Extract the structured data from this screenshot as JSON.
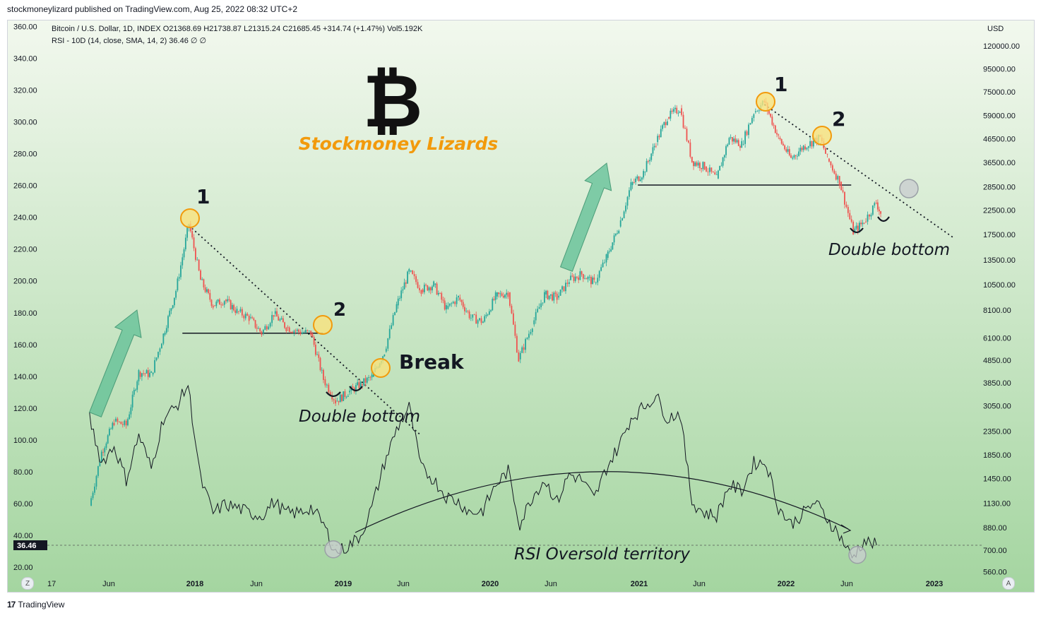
{
  "publisher_line": "stockmoneylizard published on TradingView.com, Aug 25, 2022 08:32 UTC+2",
  "footer_brand": "TradingView",
  "legend": {
    "symbol_line": "Bitcoin / U.S. Dollar, 1D, INDEX  O21368.69  H21738.87  L21315.24  C21685.45  +314.74 (+1.47%)  Vol5.192K",
    "rsi_line": "RSI - 10D (14, close, SMA, 14, 2)  36.46  ∅  ∅"
  },
  "buttons": {
    "zoom_label": "Z",
    "auto_label": "A"
  },
  "colors": {
    "background_top": "#f2f8ee",
    "background_bottom": "#a4d5a0",
    "candle_up": "#26a69a",
    "candle_down": "#ef5350",
    "marker_fill": "#f9e27d",
    "marker_stroke": "#f29a0c",
    "arrow_fill": "#5fbf95",
    "brand_text": "#f29a0c"
  },
  "chart_data": {
    "type": "candlestick",
    "title": "Bitcoin / U.S. Dollar, 1D, INDEX",
    "brand_symbol": "₿",
    "brand_text": "Stockmoney Lizards",
    "x_ticks": [
      "17",
      "Jun",
      "2018",
      "Jun",
      "2019",
      "Jun",
      "2020",
      "Jun",
      "2021",
      "Jun",
      "2022",
      "Jun",
      "2023"
    ],
    "price_axis": {
      "unit": "USD",
      "scale": "log",
      "ticks": [
        120000,
        95000,
        75000,
        59000,
        46500,
        36500,
        28500,
        22500,
        17500,
        13500,
        10500,
        8100,
        6100,
        4850,
        3850,
        3050,
        2350,
        1850,
        1450,
        1130,
        880,
        700,
        560
      ],
      "tick_labels": [
        "120000.00",
        "95000.00",
        "75000.00",
        "59000.00",
        "46500.00",
        "36500.00",
        "28500.00",
        "22500.00",
        "17500.00",
        "13500.00",
        "10500.00",
        "8100.00",
        "6100.00",
        "4850.00",
        "3850.00",
        "3050.00",
        "2350.00",
        "1850.00",
        "1450.00",
        "1130.00",
        "880.00",
        "700.00",
        "560.00"
      ]
    },
    "rsi_axis": {
      "ticks": [
        360,
        340,
        320,
        300,
        280,
        260,
        240,
        220,
        200,
        180,
        160,
        140,
        120,
        100,
        80,
        60,
        40,
        20
      ],
      "tick_labels": [
        "360.00",
        "340.00",
        "320.00",
        "300.00",
        "280.00",
        "260.00",
        "240.00",
        "220.00",
        "200.00",
        "180.00",
        "160.00",
        "140.00",
        "120.00",
        "100.00",
        "80.00",
        "60.00",
        "40.00",
        "20.00"
      ],
      "current_value_label": "36.46",
      "current_value": 36.46
    },
    "price_path": [
      [
        "2017-04",
        1100
      ],
      [
        "2017-05",
        1900
      ],
      [
        "2017-06",
        2600
      ],
      [
        "2017-07",
        2500
      ],
      [
        "2017-08",
        4300
      ],
      [
        "2017-09",
        4200
      ],
      [
        "2017-10",
        6300
      ],
      [
        "2017-11",
        9900
      ],
      [
        "2017-12-17",
        19600
      ],
      [
        "2018-01",
        11000
      ],
      [
        "2018-02",
        8500
      ],
      [
        "2018-03",
        9000
      ],
      [
        "2018-04",
        8000
      ],
      [
        "2018-05",
        7500
      ],
      [
        "2018-06",
        6400
      ],
      [
        "2018-07",
        7800
      ],
      [
        "2018-08",
        6800
      ],
      [
        "2018-09",
        6500
      ],
      [
        "2018-10",
        6400
      ],
      [
        "2018-11",
        4000
      ],
      [
        "2018-12-15",
        3200
      ],
      [
        "2019-01",
        3500
      ],
      [
        "2019-02",
        3800
      ],
      [
        "2019-03",
        4100
      ],
      [
        "2019-04",
        5300
      ],
      [
        "2019-05",
        8500
      ],
      [
        "2019-06",
        12000
      ],
      [
        "2019-07",
        10000
      ],
      [
        "2019-08",
        10500
      ],
      [
        "2019-09",
        8200
      ],
      [
        "2019-10",
        9200
      ],
      [
        "2019-11",
        7500
      ],
      [
        "2019-12",
        7200
      ],
      [
        "2020-01",
        9300
      ],
      [
        "2020-02",
        9700
      ],
      [
        "2020-03-12",
        4900
      ],
      [
        "2020-04",
        7000
      ],
      [
        "2020-05",
        9500
      ],
      [
        "2020-06",
        9200
      ],
      [
        "2020-07",
        11000
      ],
      [
        "2020-08",
        11700
      ],
      [
        "2020-09",
        10700
      ],
      [
        "2020-10",
        13800
      ],
      [
        "2020-11",
        19000
      ],
      [
        "2020-12",
        29000
      ],
      [
        "2021-01",
        33000
      ],
      [
        "2021-02",
        45000
      ],
      [
        "2021-03",
        58000
      ],
      [
        "2021-04",
        63500
      ],
      [
        "2021-05",
        37000
      ],
      [
        "2021-06",
        35000
      ],
      [
        "2021-07",
        31000
      ],
      [
        "2021-08",
        47000
      ],
      [
        "2021-09",
        44000
      ],
      [
        "2021-10",
        61000
      ],
      [
        "2021-11-10",
        68000
      ],
      [
        "2021-12",
        47000
      ],
      [
        "2022-01",
        38000
      ],
      [
        "2022-02",
        43000
      ],
      [
        "2022-03-28",
        47000
      ],
      [
        "2022-04",
        38000
      ],
      [
        "2022-05",
        30000
      ],
      [
        "2022-06-18",
        18000
      ],
      [
        "2022-07",
        20000
      ],
      [
        "2022-08-14",
        24300
      ],
      [
        "2022-08-25",
        21685.45
      ]
    ],
    "rsi_path": [
      [
        "2017-04",
        82
      ],
      [
        "2017-05",
        66
      ],
      [
        "2017-06",
        72
      ],
      [
        "2017-07",
        60
      ],
      [
        "2017-08",
        76
      ],
      [
        "2017-09",
        64
      ],
      [
        "2017-10",
        82
      ],
      [
        "2017-11",
        86
      ],
      [
        "2017-12",
        94
      ],
      [
        "2018-01",
        60
      ],
      [
        "2018-02",
        48
      ],
      [
        "2018-03",
        51
      ],
      [
        "2018-04",
        50
      ],
      [
        "2018-05",
        48
      ],
      [
        "2018-06",
        47
      ],
      [
        "2018-07",
        52
      ],
      [
        "2018-08",
        48
      ],
      [
        "2018-09",
        48
      ],
      [
        "2018-10",
        50
      ],
      [
        "2018-11",
        44
      ],
      [
        "2018-12",
        34
      ],
      [
        "2019-01",
        36
      ],
      [
        "2019-02",
        40
      ],
      [
        "2019-03",
        50
      ],
      [
        "2019-04",
        66
      ],
      [
        "2019-05",
        78
      ],
      [
        "2019-06",
        86
      ],
      [
        "2019-07",
        64
      ],
      [
        "2019-08",
        60
      ],
      [
        "2019-09",
        54
      ],
      [
        "2019-10",
        52
      ],
      [
        "2019-11",
        48
      ],
      [
        "2019-12",
        49
      ],
      [
        "2020-01",
        58
      ],
      [
        "2020-02",
        63
      ],
      [
        "2020-03",
        44
      ],
      [
        "2020-04",
        54
      ],
      [
        "2020-05",
        60
      ],
      [
        "2020-06",
        52
      ],
      [
        "2020-07",
        62
      ],
      [
        "2020-08",
        60
      ],
      [
        "2020-09",
        53
      ],
      [
        "2020-10",
        64
      ],
      [
        "2020-11",
        72
      ],
      [
        "2020-12",
        82
      ],
      [
        "2021-01",
        86
      ],
      [
        "2021-02",
        90
      ],
      [
        "2021-03",
        82
      ],
      [
        "2021-04",
        84
      ],
      [
        "2021-05",
        52
      ],
      [
        "2021-06",
        48
      ],
      [
        "2021-07",
        47
      ],
      [
        "2021-08",
        58
      ],
      [
        "2021-09",
        56
      ],
      [
        "2021-10",
        66
      ],
      [
        "2021-11",
        66
      ],
      [
        "2021-12",
        50
      ],
      [
        "2022-01",
        44
      ],
      [
        "2022-02",
        48
      ],
      [
        "2022-03",
        52
      ],
      [
        "2022-04",
        46
      ],
      [
        "2022-05",
        40
      ],
      [
        "2022-06",
        32
      ],
      [
        "2022-07",
        38
      ],
      [
        "2022-08",
        36.46
      ]
    ],
    "support_lines": [
      {
        "from": "2017-12-01",
        "to": "2018-11-14",
        "price": 6400
      },
      {
        "from": "2021-01-01",
        "to": "2022-06-13",
        "price": 29000
      }
    ],
    "trendlines": [
      {
        "from": [
          "2017-12-17",
          19200
        ],
        "to": [
          "2019-07-15",
          2250
        ]
      },
      {
        "from": [
          "2021-11-10",
          66000
        ],
        "to": [
          "2023-02-20",
          17000
        ]
      }
    ],
    "rsi_oversold_level": 36.46,
    "annotations": [
      {
        "text": "1",
        "at": [
          "2017-12-17",
          19600
        ]
      },
      {
        "text": "2",
        "at": [
          "2018-11-10",
          6600
        ]
      },
      {
        "text": "Break",
        "at": [
          "2019-04-20",
          4200
        ]
      },
      {
        "text": "Double bottom",
        "at": [
          "2019-01-15",
          2700
        ]
      },
      {
        "text": "1",
        "at": [
          "2021-11-10",
          66000
        ]
      },
      {
        "text": "2",
        "at": [
          "2022-03-28",
          47000
        ]
      },
      {
        "text": "Double bottom",
        "at": [
          "2022-07-20",
          15000
        ]
      },
      {
        "text": "RSI Oversold territory",
        "at": [
          "2020-06-01",
          30
        ]
      }
    ]
  }
}
